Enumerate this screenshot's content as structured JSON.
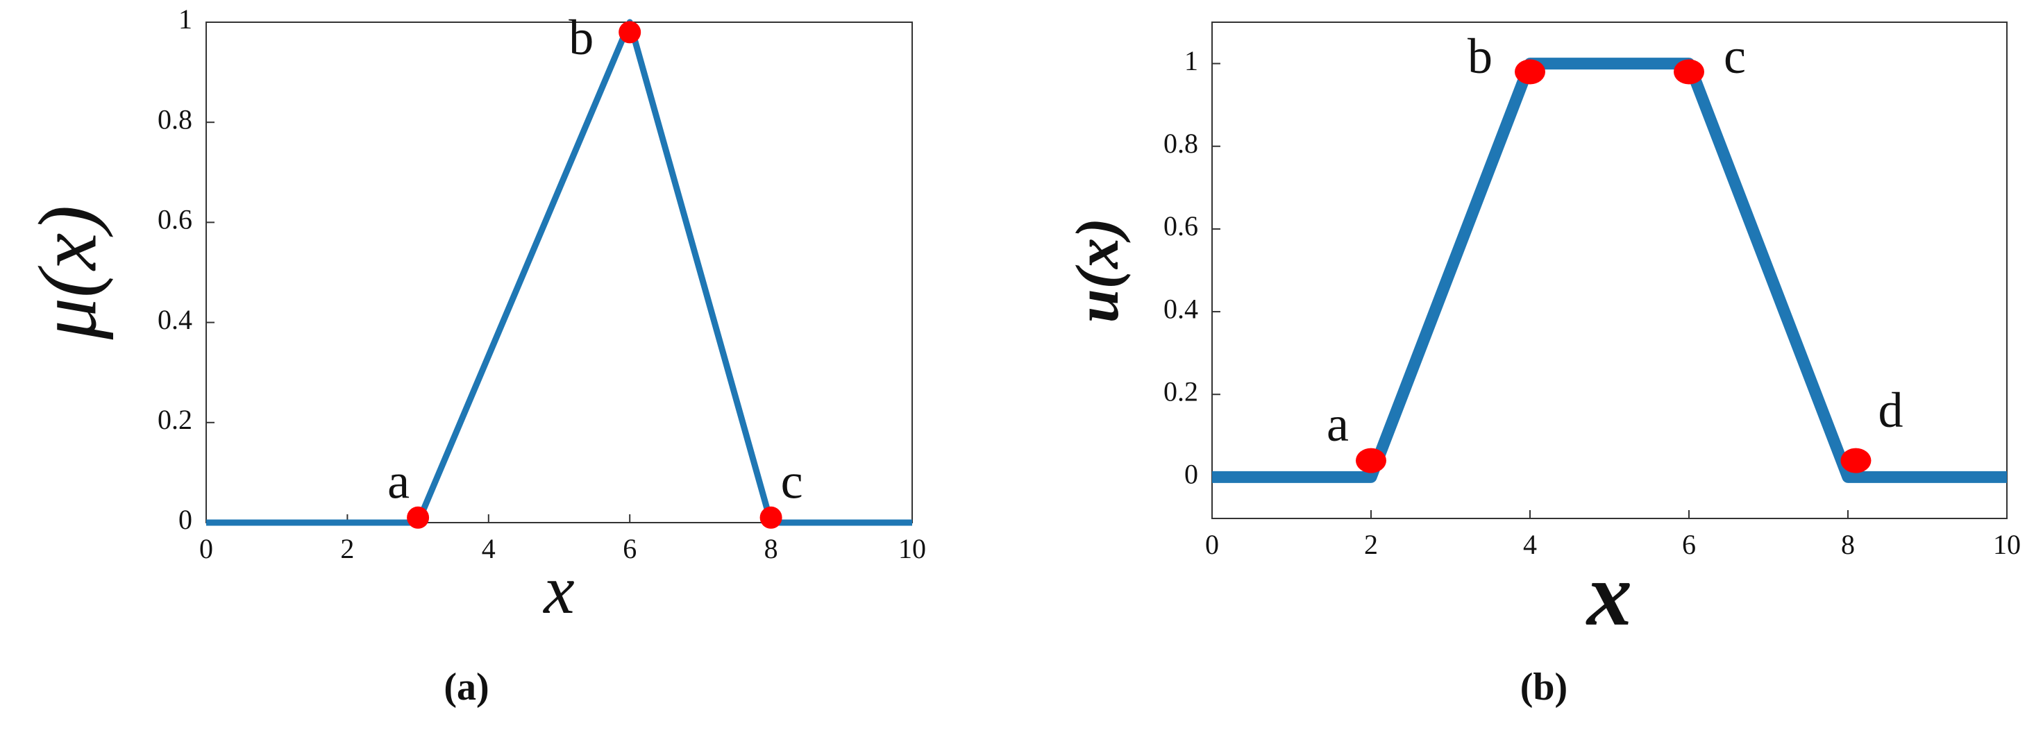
{
  "chart_data": [
    {
      "type": "line",
      "x": [
        0,
        3,
        6,
        8,
        10
      ],
      "series": [
        {
          "color": "#1f77b4",
          "values": [
            0,
            0,
            1,
            0,
            0
          ]
        }
      ],
      "points": [
        {
          "label": "a",
          "x": 3,
          "y": 0.01,
          "color": "#ff0000"
        },
        {
          "label": "b",
          "x": 6,
          "y": 0.98,
          "color": "#ff0000"
        },
        {
          "label": "c",
          "x": 8,
          "y": 0.01,
          "color": "#ff0000"
        }
      ],
      "xlim": [
        0,
        10
      ],
      "xticks": [
        0,
        2,
        4,
        6,
        8,
        10
      ],
      "ylim": [
        0,
        1
      ],
      "yticks": [
        0,
        0.2,
        0.4,
        0.6,
        0.8,
        1
      ],
      "x_label": "x",
      "y_label": "μ(x)",
      "caption": "(a)"
    },
    {
      "type": "line",
      "x": [
        0,
        2,
        4,
        6,
        8,
        10
      ],
      "series": [
        {
          "color": "#1f77b4",
          "values": [
            0,
            0,
            1,
            1,
            0,
            0
          ]
        }
      ],
      "points": [
        {
          "label": "a",
          "x": 2,
          "y": 0.04,
          "color": "#ff0000"
        },
        {
          "label": "b",
          "x": 4,
          "y": 0.98,
          "color": "#ff0000"
        },
        {
          "label": "c",
          "x": 6,
          "y": 0.98,
          "color": "#ff0000"
        },
        {
          "label": "d",
          "x": 8.1,
          "y": 0.04,
          "color": "#ff0000"
        }
      ],
      "xlim": [
        0,
        10
      ],
      "xticks": [
        0,
        2,
        4,
        6,
        8,
        10
      ],
      "ylim": [
        -0.1,
        1.1
      ],
      "yticks": [
        0,
        0.2,
        0.4,
        0.6,
        0.8,
        1
      ],
      "x_label": "x",
      "y_label": "u(x)",
      "caption": "(b)"
    }
  ]
}
